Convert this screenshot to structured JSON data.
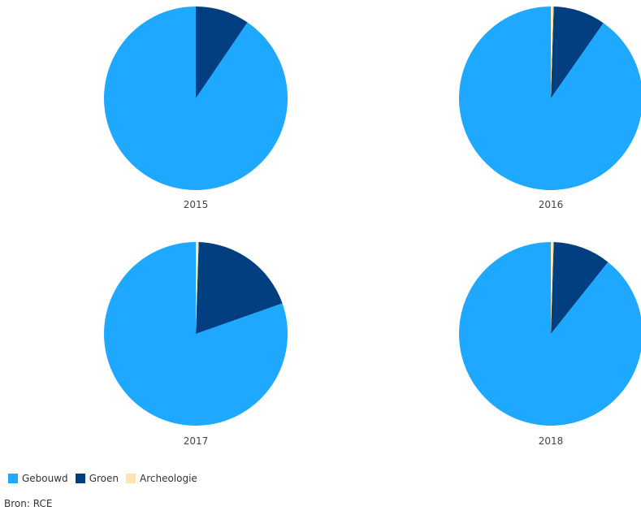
{
  "chart_data": [
    {
      "type": "pie",
      "label": "2015",
      "slices": [
        {
          "name": "Gebouwd",
          "value": 90.5
        },
        {
          "name": "Groen",
          "value": 9.5
        },
        {
          "name": "Archeologie",
          "value": 0
        }
      ]
    },
    {
      "type": "pie",
      "label": "2016",
      "slices": [
        {
          "name": "Gebouwd",
          "value": 90.3
        },
        {
          "name": "Groen",
          "value": 9.2
        },
        {
          "name": "Archeologie",
          "value": 0.5
        }
      ]
    },
    {
      "type": "pie",
      "label": "2017",
      "slices": [
        {
          "name": "Gebouwd",
          "value": 80.4
        },
        {
          "name": "Groen",
          "value": 19.1
        },
        {
          "name": "Archeologie",
          "value": 0.5
        }
      ]
    },
    {
      "type": "pie",
      "label": "2018",
      "slices": [
        {
          "name": "Gebouwd",
          "value": 89.3
        },
        {
          "name": "Groen",
          "value": 10.2
        },
        {
          "name": "Archeologie",
          "value": 0.5
        }
      ]
    }
  ],
  "legend": [
    {
      "name": "Gebouwd",
      "color": "#1fa8ff"
    },
    {
      "name": "Groen",
      "color": "#023f80"
    },
    {
      "name": "Archeologie",
      "color": "#fde5b0"
    }
  ],
  "source": "Bron: RCE"
}
